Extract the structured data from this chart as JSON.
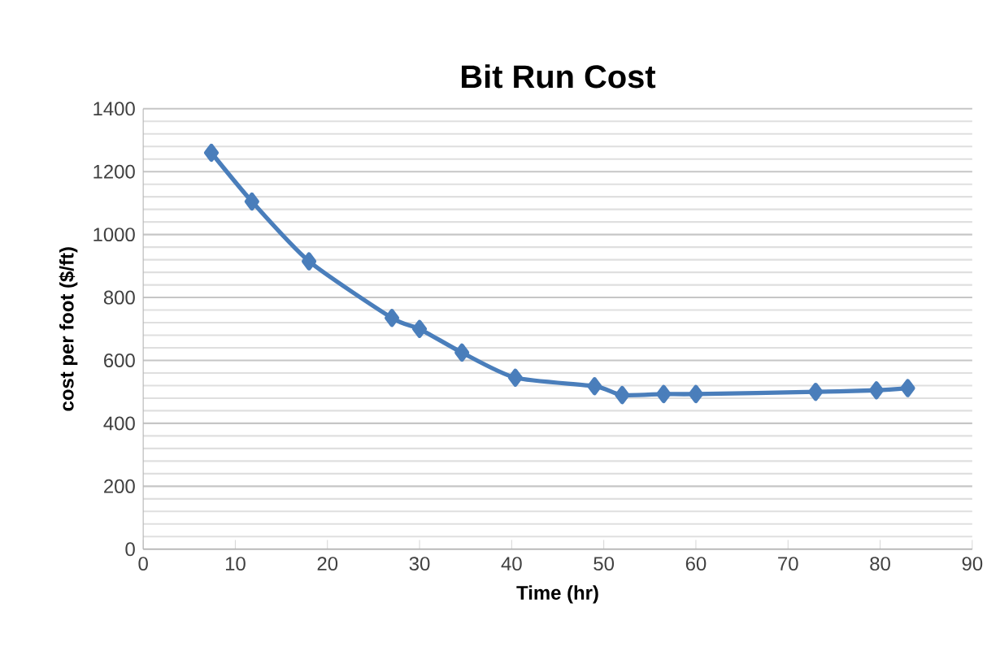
{
  "chart_data": {
    "type": "line",
    "title": "Bit Run Cost",
    "xlabel": "Time (hr)",
    "ylabel": "cost per foot ($/ft)",
    "x": [
      7.4,
      11.8,
      18,
      27,
      30,
      34.6,
      40.4,
      49,
      52,
      56.5,
      60,
      73,
      79.6,
      83
    ],
    "series": [
      {
        "color": "#4a7ebb",
        "values": [
          1260,
          1105,
          915,
          735,
          700,
          625,
          545,
          518,
          490,
          493,
          493,
          500,
          505,
          512
        ]
      }
    ],
    "xlim": [
      0,
      90
    ],
    "xticks": [
      0,
      10,
      20,
      30,
      40,
      50,
      60,
      70,
      80,
      90
    ],
    "ylim": [
      0,
      1400
    ],
    "yticks": [
      0,
      200,
      400,
      600,
      800,
      1000,
      1200,
      1400
    ],
    "grid": "y",
    "marker": "diamond",
    "line_style": "solid"
  }
}
